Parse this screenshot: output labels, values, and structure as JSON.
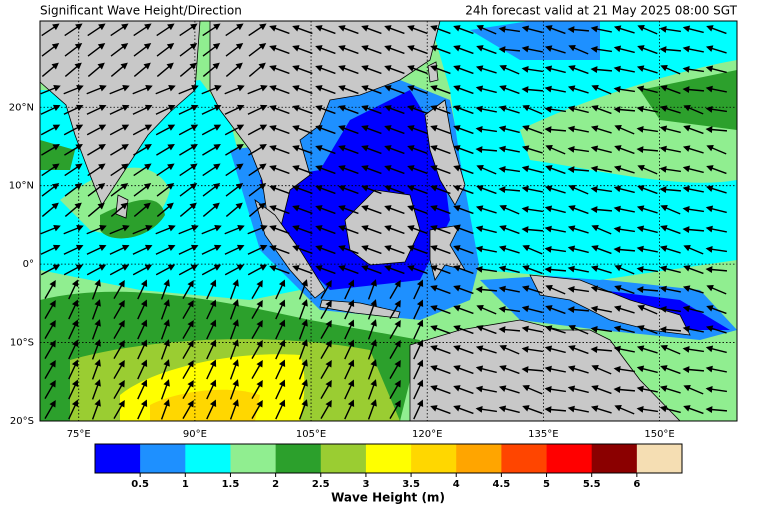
{
  "title_left": "Significant Wave Height/Direction",
  "title_right": "24h forecast valid at 21 May 2025 08:00 SGT",
  "map": {
    "lon_lim": [
      70,
      160
    ],
    "lat_lim": [
      -20,
      31
    ],
    "lon_ticks": [
      {
        "value": 75,
        "label": "75°E"
      },
      {
        "value": 90,
        "label": "90°E"
      },
      {
        "value": 105,
        "label": "105°E"
      },
      {
        "value": 120,
        "label": "120°E"
      },
      {
        "value": 135,
        "label": "135°E"
      },
      {
        "value": 150,
        "label": "150°E"
      }
    ],
    "lat_ticks": [
      {
        "value": 20,
        "label": "20°N"
      },
      {
        "value": 10,
        "label": "10°N"
      },
      {
        "value": 0,
        "label": "0°"
      },
      {
        "value": -10,
        "label": "10°S"
      },
      {
        "value": -20,
        "label": "20°S"
      }
    ]
  },
  "colorbar": {
    "label": "Wave Height (m)",
    "lim": [
      0,
      6.5
    ],
    "colors": [
      "#0000ff",
      "#1e90ff",
      "#00ffff",
      "#90ee90",
      "#2ca02c",
      "#9acd32",
      "#ffff00",
      "#ffd700",
      "#ffa500",
      "#ff4500",
      "#ff0000",
      "#8b0000",
      "#f5deb3"
    ],
    "ticks": [
      0.5,
      1,
      1.5,
      2,
      2.5,
      3,
      3.5,
      4,
      4.5,
      5,
      5.5,
      6
    ]
  }
}
